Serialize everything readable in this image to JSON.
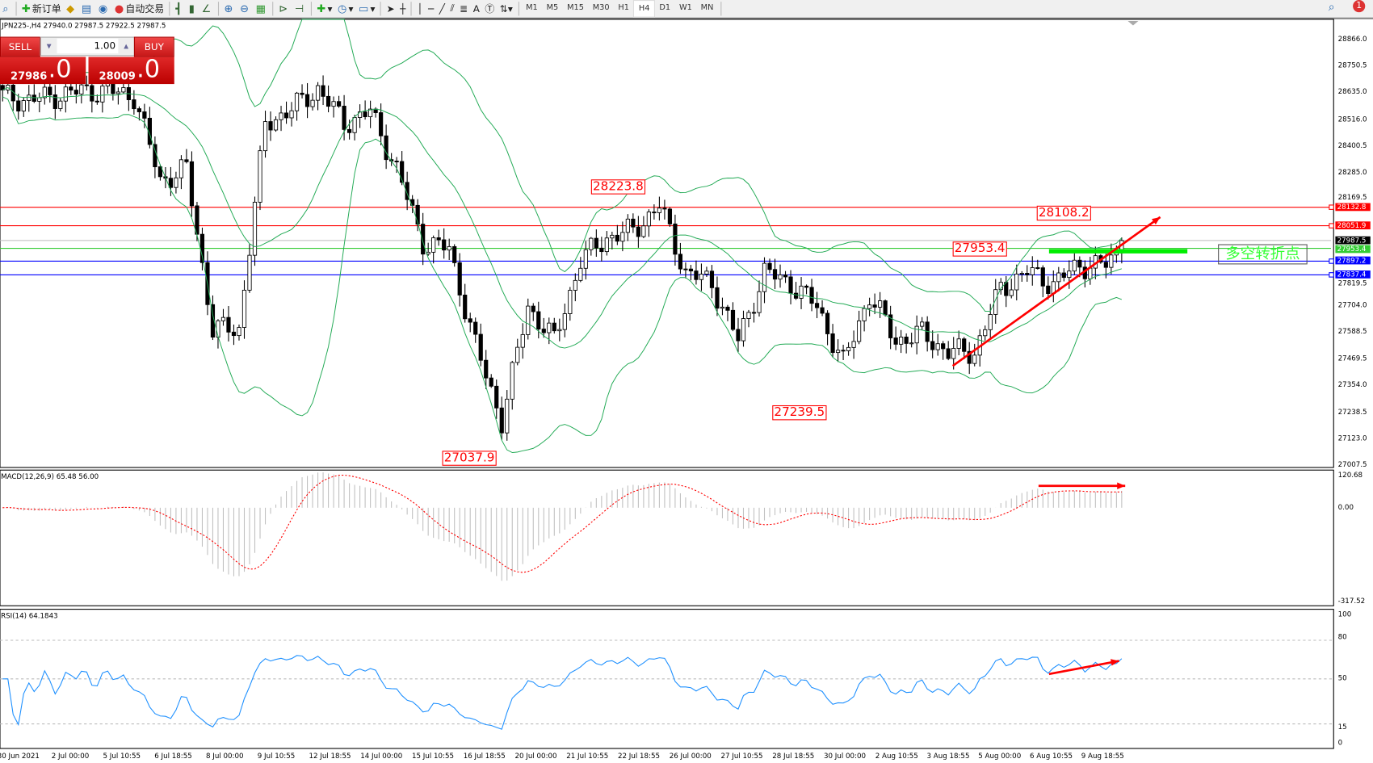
{
  "toolbar": {
    "new_order": "新订单",
    "auto_trading": "自动交易",
    "timeframes": [
      "M1",
      "M5",
      "M15",
      "M30",
      "H1",
      "H4",
      "D1",
      "W1",
      "MN"
    ],
    "active_timeframe": "H4",
    "notification_count": "1"
  },
  "chart": {
    "title": "JPN225-,H4  27940.0 27987.5 27922.5 27987.5",
    "one_click": {
      "sell": "SELL",
      "buy": "BUY",
      "lot": "1.00",
      "sell_price": "27986",
      "sell_pip": ".0",
      "buy_price": "28009",
      "buy_pip": ".0"
    },
    "price_axis": [
      "28866.0",
      "28750.5",
      "28635.0",
      "28516.0",
      "28400.5",
      "28285.0",
      "28169.5",
      "27819.5",
      "27704.0",
      "27588.5",
      "27469.5",
      "27354.0",
      "27238.5",
      "27123.0",
      "27007.5"
    ],
    "price_range": [
      27007.5,
      28866.0
    ],
    "levels": [
      {
        "price": "28132.8",
        "color": "#ff0000"
      },
      {
        "price": "28051.9",
        "color": "#ff0000"
      },
      {
        "price": "27987.5",
        "color": "#000000"
      },
      {
        "price": "27953.4",
        "color": "#33cc33"
      },
      {
        "price": "27897.2",
        "color": "#0000ff"
      },
      {
        "price": "27837.4",
        "color": "#0000ff"
      }
    ],
    "labels": [
      "28223.8",
      "28108.2",
      "27953.4",
      "27239.5",
      "27037.9"
    ],
    "note": "多空转折点",
    "closes": [
      28620,
      28600,
      28620,
      28640,
      28640,
      28620,
      28250,
      28300,
      27600,
      27600,
      28500,
      28560,
      28650,
      28500,
      28550,
      28300,
      27980,
      27950,
      27530,
      27200,
      27700,
      27550,
      27900,
      28000,
      28030,
      28140,
      27850,
      27800,
      27550,
      27850,
      27800,
      27700,
      27450,
      27750,
      27550,
      27580,
      27500,
      27500,
      27780,
      27850,
      27800,
      27880,
      27880,
      27987.5
    ],
    "time_axis": [
      "30 Jun 2021",
      "2 Jul 00:00",
      "5 Jul 10:55",
      "6 Jul 18:55",
      "8 Jul 00:00",
      "9 Jul 10:55",
      "12 Jul 18:55",
      "14 Jul 00:00",
      "15 Jul 10:55",
      "16 Jul 18:55",
      "20 Jul 00:00",
      "21 Jul 10:55",
      "22 Jul 18:55",
      "26 Jul 00:00",
      "27 Jul 10:55",
      "28 Jul 18:55",
      "30 Jul 00:00",
      "2 Aug 10:55",
      "3 Aug 18:55",
      "5 Aug 00:00",
      "6 Aug 10:55",
      "9 Aug 18:55"
    ]
  },
  "macd": {
    "title": "MACD(12,26,9) 65.48 56.00",
    "axis": [
      "120.68",
      "0.00",
      "-317.52"
    ],
    "range": [
      -317.52,
      120.68
    ]
  },
  "rsi": {
    "title": "RSI(14) 64.1843",
    "axis": [
      "100",
      "80",
      "50",
      "15",
      "0"
    ]
  },
  "colors": {
    "bands": "#22aa55",
    "signal": "#ff0000",
    "rsi": "#1e90ff",
    "arrow": "#ff0000",
    "pivot": "#00ee00"
  }
}
